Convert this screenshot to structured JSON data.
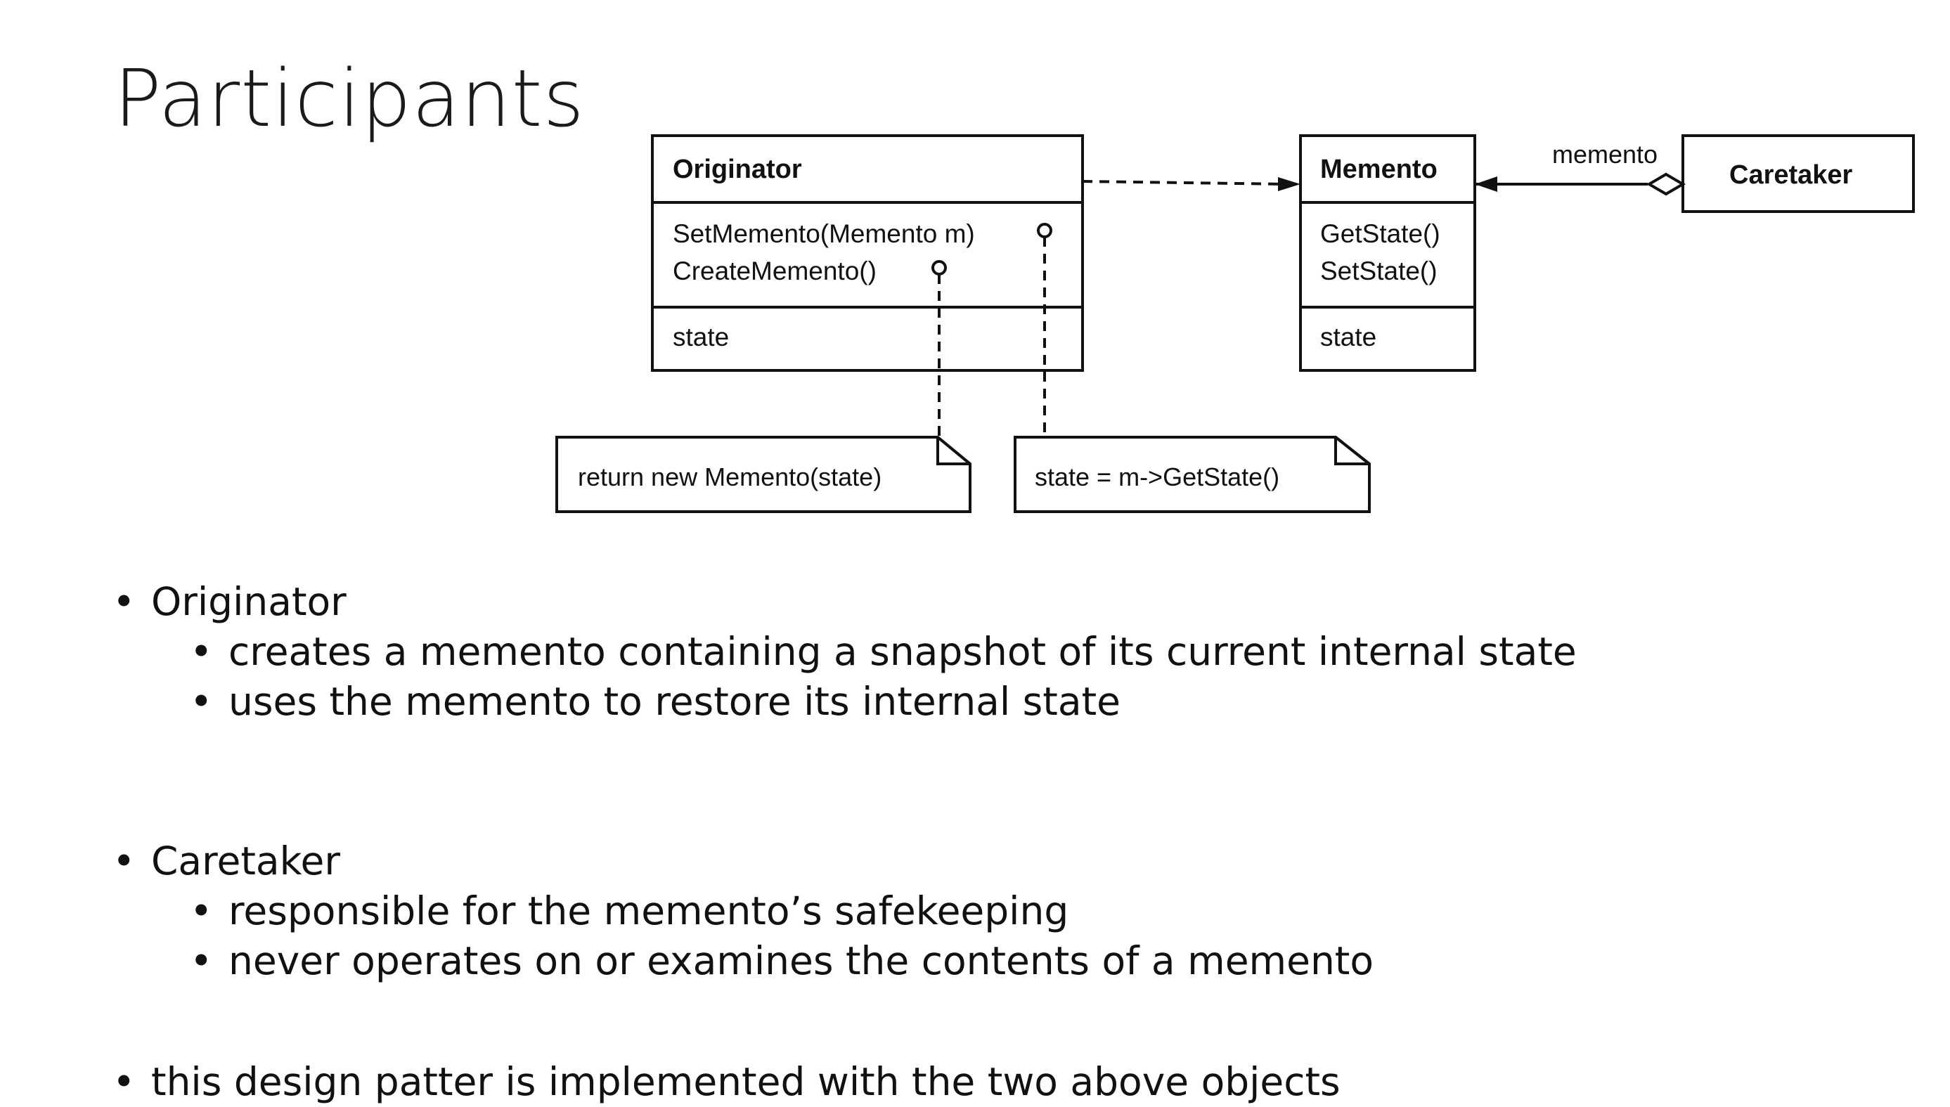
{
  "title": "Participants",
  "diagram": {
    "originator": {
      "name": "Originator",
      "operations": [
        "SetMemento(Memento m)",
        "CreateMemento()"
      ],
      "attribute": "state"
    },
    "memento": {
      "name": "Memento",
      "operations": [
        "GetState()",
        "SetState()"
      ],
      "attribute": "state"
    },
    "caretaker": {
      "name": "Caretaker"
    },
    "association_label": "memento",
    "notes": {
      "create": "return new Memento(state)",
      "set": "state = m->GetState()"
    }
  },
  "bullets": [
    {
      "label": "Originator",
      "items": [
        "creates a memento containing a snapshot of its current internal state",
        "uses the memento to restore its internal state"
      ]
    },
    {
      "label": "Caretaker",
      "items": [
        "responsible for the memento’s safekeeping",
        "never operates on or examines the contents of a memento"
      ]
    },
    {
      "label": "this design patter is implemented with the two above objects",
      "items": []
    }
  ]
}
